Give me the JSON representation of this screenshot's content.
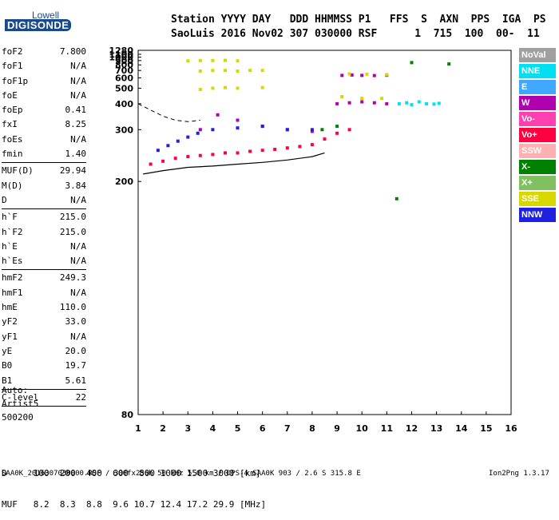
{
  "logo": {
    "top": "Lowell",
    "main": "DIGISONDE"
  },
  "header": {
    "labels": "Station YYYY DAY   DDD HHMMSS P1   FFS  S  AXN  PPS  IGA  PS",
    "values": "SaoLuis 2016 Nov02 307 030000 RSF      1  715  100  00-  11"
  },
  "params": [
    {
      "name": "foF2",
      "value": "7.800"
    },
    {
      "name": "foF1",
      "value": "N/A"
    },
    {
      "name": "foF1p",
      "value": "N/A"
    },
    {
      "name": "foE",
      "value": "N/A"
    },
    {
      "name": "foEp",
      "value": "0.41"
    },
    {
      "name": "fxI",
      "value": "8.25"
    },
    {
      "name": "foEs",
      "value": "N/A"
    },
    {
      "name": "fmin",
      "value": "1.40"
    },
    {
      "sep": true
    },
    {
      "name": "MUF(D)",
      "value": "29.94"
    },
    {
      "name": "M(D)",
      "value": "3.84"
    },
    {
      "name": "D",
      "value": "N/A"
    },
    {
      "sep": true
    },
    {
      "name": "h`F",
      "value": "215.0"
    },
    {
      "name": "h`F2",
      "value": "215.0"
    },
    {
      "name": "h`E",
      "value": "N/A"
    },
    {
      "name": "h`Es",
      "value": "N/A"
    },
    {
      "sep": true
    },
    {
      "name": "hmF2",
      "value": "249.3"
    },
    {
      "name": "hmF1",
      "value": "N/A"
    },
    {
      "name": "hmE",
      "value": "110.0"
    },
    {
      "name": "yF2",
      "value": "33.0"
    },
    {
      "name": "yF1",
      "value": "N/A"
    },
    {
      "name": "yE",
      "value": "20.0"
    },
    {
      "name": "B0",
      "value": "19.7"
    },
    {
      "name": "B1",
      "value": "5.61"
    },
    {
      "sep": true
    },
    {
      "name": "C-level",
      "value": "22"
    },
    {
      "sep": true
    }
  ],
  "auto": {
    "label": "Auto:",
    "artist": "Artist5",
    "version": "500200"
  },
  "freq_table": {
    "d_row": "D     100  200  400  600  800 1000 1500 3000 [km]",
    "muf_row": "MUF   8.2  8.3  8.8  9.6 10.7 12.4 17.2 29.9 [MHz]"
  },
  "footer": "SAA0K_2016307030000.RSF / 300fx256h 50 kHz 5.0 km / DPS-4 SAA0K 903 / 2.6 S 315.8 E",
  "footer_right": "Ion2Png 1.3.17",
  "legend": [
    {
      "label": "NoVal",
      "color": "#a0a0a0"
    },
    {
      "label": "NNE",
      "color": "#00e0f0"
    },
    {
      "label": "E",
      "color": "#40a8ff"
    },
    {
      "label": "W",
      "color": "#b000b0"
    },
    {
      "label": "Vo-",
      "color": "#ff40b0"
    },
    {
      "label": "Vo+",
      "color": "#ff0040"
    },
    {
      "label": "SSW",
      "color": "#ffb0b0"
    },
    {
      "label": "X-",
      "color": "#008000"
    },
    {
      "label": "X+",
      "color": "#80c060"
    },
    {
      "label": "SSE",
      "color": "#d8d800"
    },
    {
      "label": "NNW",
      "color": "#2020e0"
    }
  ],
  "chart_data": {
    "type": "scatter",
    "title": "",
    "xlabel": "",
    "ylabel": "",
    "x_ticks": [
      1,
      2,
      3,
      4,
      5,
      6,
      7,
      8,
      9,
      10,
      11,
      12,
      13,
      14,
      15,
      16
    ],
    "y_ticks": [
      80,
      200,
      300,
      400,
      500,
      600,
      700,
      800,
      900,
      1000,
      1100,
      1280
    ],
    "xlim": [
      1,
      16
    ],
    "ylim": [
      80,
      1280
    ],
    "y_scale": "reciprocal",
    "series": [
      {
        "color": "#ff0040",
        "points": [
          [
            1.5,
            225
          ],
          [
            2,
            230
          ],
          [
            2.5,
            235
          ],
          [
            3,
            238
          ],
          [
            3.5,
            240
          ],
          [
            4,
            242
          ],
          [
            4.5,
            245
          ],
          [
            5,
            245
          ],
          [
            5.5,
            248
          ],
          [
            6,
            250
          ],
          [
            6.5,
            252
          ],
          [
            7,
            255
          ],
          [
            7.5,
            258
          ],
          [
            8,
            262
          ],
          [
            8.5,
            275
          ],
          [
            9,
            290
          ],
          [
            9.5,
            300
          ]
        ]
      },
      {
        "color": "#b000b0",
        "points": [
          [
            9,
            400
          ],
          [
            9.5,
            405
          ],
          [
            10,
            410
          ],
          [
            10.5,
            405
          ],
          [
            11,
            400
          ],
          [
            9.2,
            630
          ],
          [
            9.6,
            635
          ],
          [
            10,
            630
          ],
          [
            10.5,
            628
          ],
          [
            11,
            632
          ],
          [
            3.5,
            300
          ],
          [
            4.2,
            350
          ],
          [
            5,
            330
          ],
          [
            6,
            310
          ],
          [
            7,
            300
          ],
          [
            8,
            295
          ]
        ]
      },
      {
        "color": "#00e0f0",
        "points": [
          [
            11.5,
            400
          ],
          [
            11.8,
            405
          ],
          [
            12,
            395
          ],
          [
            12.3,
            410
          ],
          [
            12.6,
            400
          ],
          [
            12.9,
            398
          ],
          [
            13.1,
            402
          ]
        ]
      },
      {
        "color": "#d8d800",
        "points": [
          [
            3,
            890
          ],
          [
            3.5,
            900
          ],
          [
            4,
            900
          ],
          [
            4.5,
            905
          ],
          [
            5,
            890
          ],
          [
            3.5,
            690
          ],
          [
            4,
            700
          ],
          [
            4.5,
            700
          ],
          [
            5,
            690
          ],
          [
            5.5,
            700
          ],
          [
            6,
            700
          ],
          [
            3.5,
            490
          ],
          [
            4,
            500
          ],
          [
            4.5,
            505
          ],
          [
            5,
            500
          ],
          [
            6,
            505
          ],
          [
            9.2,
            440
          ],
          [
            10,
            430
          ],
          [
            10.8,
            430
          ],
          [
            9.5,
            650
          ],
          [
            10.2,
            645
          ],
          [
            11,
            640
          ]
        ]
      },
      {
        "color": "#2020e0",
        "points": [
          [
            1.8,
            250
          ],
          [
            2.2,
            260
          ],
          [
            2.6,
            270
          ],
          [
            3,
            280
          ],
          [
            3.4,
            290
          ],
          [
            4,
            300
          ],
          [
            5,
            305
          ],
          [
            6,
            310
          ],
          [
            7,
            300
          ],
          [
            8,
            300
          ]
        ]
      },
      {
        "color": "#008000",
        "points": [
          [
            8.4,
            300
          ],
          [
            9,
            310
          ],
          [
            11.4,
            180
          ],
          [
            12,
            850
          ],
          [
            13.5,
            820
          ]
        ]
      }
    ],
    "reference_curve": {
      "points": [
        [
          1.2,
          210
        ],
        [
          2,
          215
        ],
        [
          3,
          220
        ],
        [
          4,
          222
        ],
        [
          5,
          225
        ],
        [
          6,
          228
        ],
        [
          7,
          232
        ],
        [
          8,
          238
        ],
        [
          8.5,
          245
        ]
      ]
    },
    "dashed_curve": {
      "points": [
        [
          1,
          400
        ],
        [
          1.5,
          370
        ],
        [
          2,
          345
        ],
        [
          2.5,
          330
        ],
        [
          3,
          325
        ],
        [
          3.5,
          330
        ]
      ]
    }
  }
}
